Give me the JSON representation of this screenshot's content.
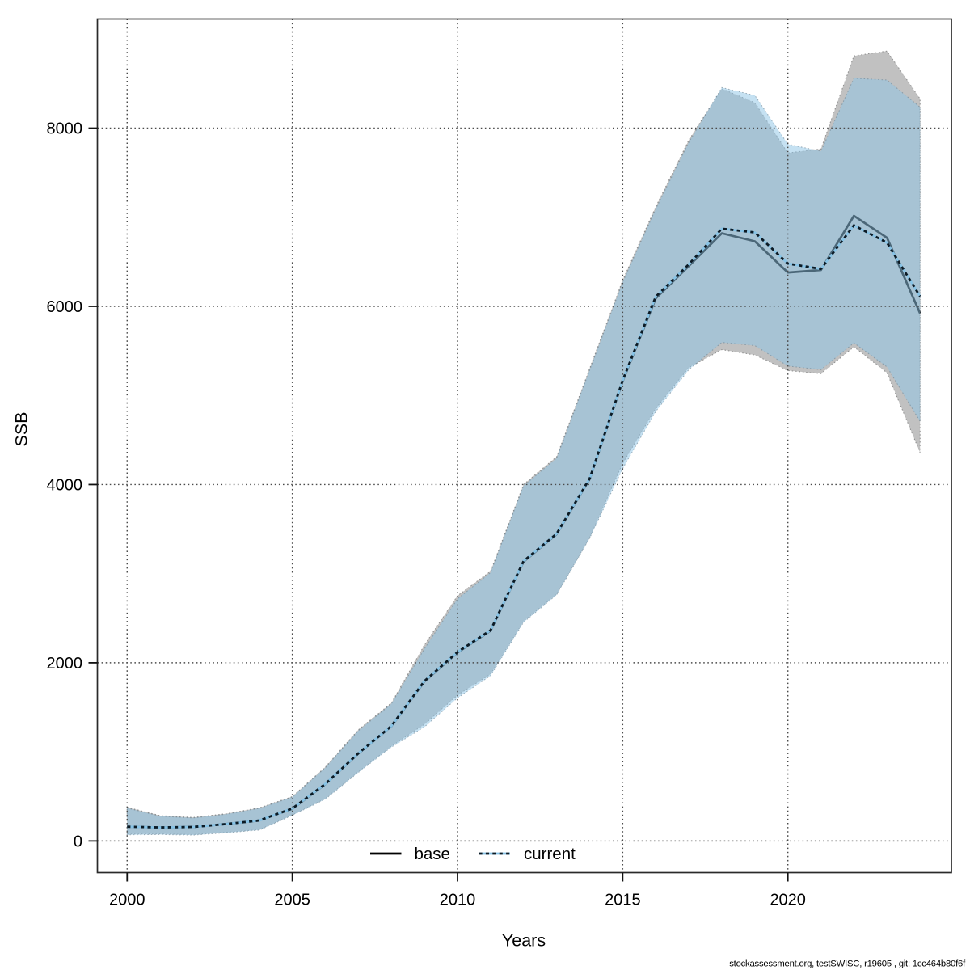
{
  "chart_data": {
    "type": "area",
    "title": "",
    "xlabel": "Years",
    "ylabel": "SSB",
    "x": [
      2000,
      2001,
      2002,
      2003,
      2004,
      2005,
      2006,
      2007,
      2008,
      2009,
      2010,
      2011,
      2012,
      2013,
      2014,
      2015,
      2016,
      2017,
      2018,
      2019,
      2020,
      2021,
      2022,
      2023,
      2024
    ],
    "series": [
      {
        "name": "base",
        "line_style": "solid",
        "median": [
          160,
          152,
          158,
          190,
          230,
          362,
          638,
          982,
          1287,
          1790,
          2115,
          2360,
          3135,
          3443,
          4062,
          5160,
          6090,
          6452,
          6820,
          6730,
          6380,
          6408,
          7016,
          6770,
          5922
        ],
        "lo": [
          78,
          80,
          72,
          98,
          128,
          294,
          476,
          778,
          1064,
          1310,
          1637,
          1872,
          2466,
          2770,
          3406,
          4238,
          4852,
          5312,
          5515,
          5455,
          5280,
          5245,
          5545,
          5255,
          4360
        ],
        "hi": [
          378,
          285,
          264,
          306,
          372,
          498,
          830,
          1248,
          1548,
          2200,
          2752,
          3026,
          4000,
          4312,
          5302,
          6292,
          7116,
          7864,
          8442,
          8285,
          7722,
          7766,
          8810,
          8865,
          8330
        ]
      },
      {
        "name": "current",
        "line_style": "dotted",
        "median": [
          160,
          152,
          158,
          190,
          230,
          364,
          640,
          985,
          1290,
          1795,
          2120,
          2365,
          3140,
          3448,
          4068,
          5168,
          6108,
          6472,
          6872,
          6830,
          6480,
          6420,
          6910,
          6715,
          6112
        ],
        "lo": [
          70,
          72,
          66,
          92,
          122,
          288,
          470,
          770,
          1054,
          1280,
          1605,
          1855,
          2455,
          2762,
          3400,
          4180,
          4820,
          5290,
          5595,
          5560,
          5330,
          5290,
          5590,
          5320,
          4710
        ],
        "hi": [
          370,
          278,
          258,
          300,
          366,
          492,
          822,
          1238,
          1538,
          2158,
          2718,
          3012,
          3985,
          4295,
          5285,
          6270,
          7092,
          7840,
          8455,
          8368,
          7820,
          7742,
          8560,
          8540,
          8235
        ]
      }
    ],
    "xticks": [
      2000,
      2005,
      2010,
      2015,
      2020
    ],
    "yticks": [
      0,
      2000,
      4000,
      6000,
      8000
    ],
    "xlim": [
      1999.1,
      2024.95
    ],
    "ylim": [
      -355,
      9225
    ],
    "grid": "dotted",
    "legend": {
      "position": "bottom-inside",
      "items": [
        {
          "label": "base",
          "swatch": "solid-black-line"
        },
        {
          "label": "current",
          "swatch": "skyblue-dotted-line"
        }
      ]
    },
    "footer": "stockassessment.org, testSWISC, r19605 , git: 1cc464b80f6f",
    "colors": {
      "base_band_fill": "#c1c1c1",
      "base_band_border": "#8f8f8f",
      "current_band_fill_rgba": "rgba(143,197,230,0.52)",
      "current_band_border_rgba": "rgba(108,130,146,0.62)",
      "base_line": "#000000",
      "current_line_under": "#87c3e6",
      "current_line_dash": "#0c1a24",
      "grid": "#4a4a4a",
      "axis_box": "#2a2a2a",
      "tick": "#111111",
      "text": "#000000"
    }
  }
}
